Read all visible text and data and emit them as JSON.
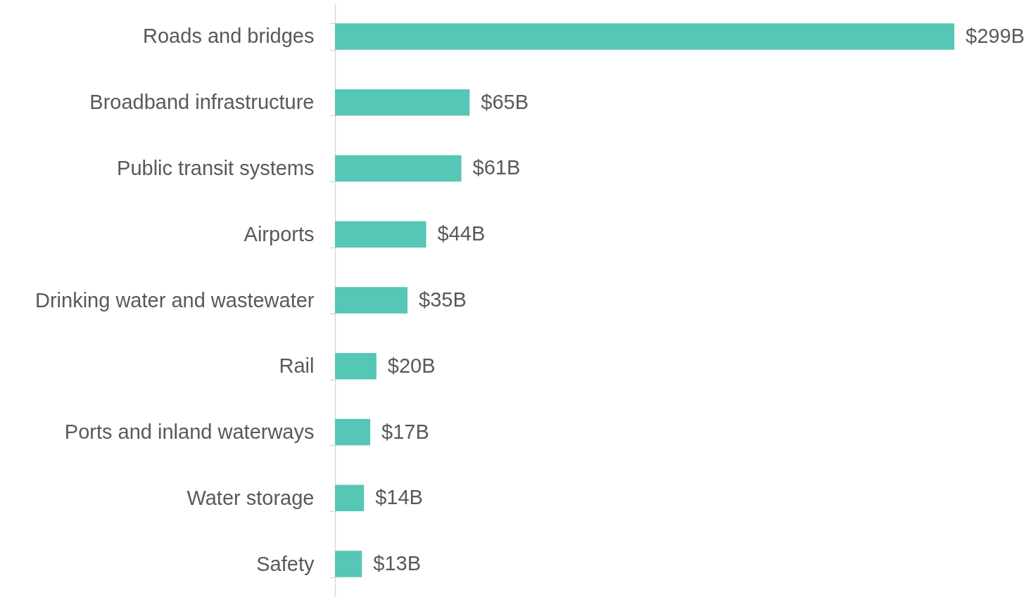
{
  "chart_data": {
    "type": "bar",
    "orientation": "horizontal",
    "categories": [
      "Roads and bridges",
      "Broadband infrastructure",
      "Public transit systems",
      "Airports",
      "Drinking water and wastewater",
      "Rail",
      "Ports and inland waterways",
      "Water storage",
      "Safety"
    ],
    "values": [
      299,
      65,
      61,
      44,
      35,
      20,
      17,
      14,
      13
    ],
    "value_labels": [
      "$299B",
      "$65B",
      "$61B",
      "$44B",
      "$35B",
      "$20B",
      "$17B",
      "$14B",
      "$13B"
    ],
    "color": "#56c6b5"
  }
}
